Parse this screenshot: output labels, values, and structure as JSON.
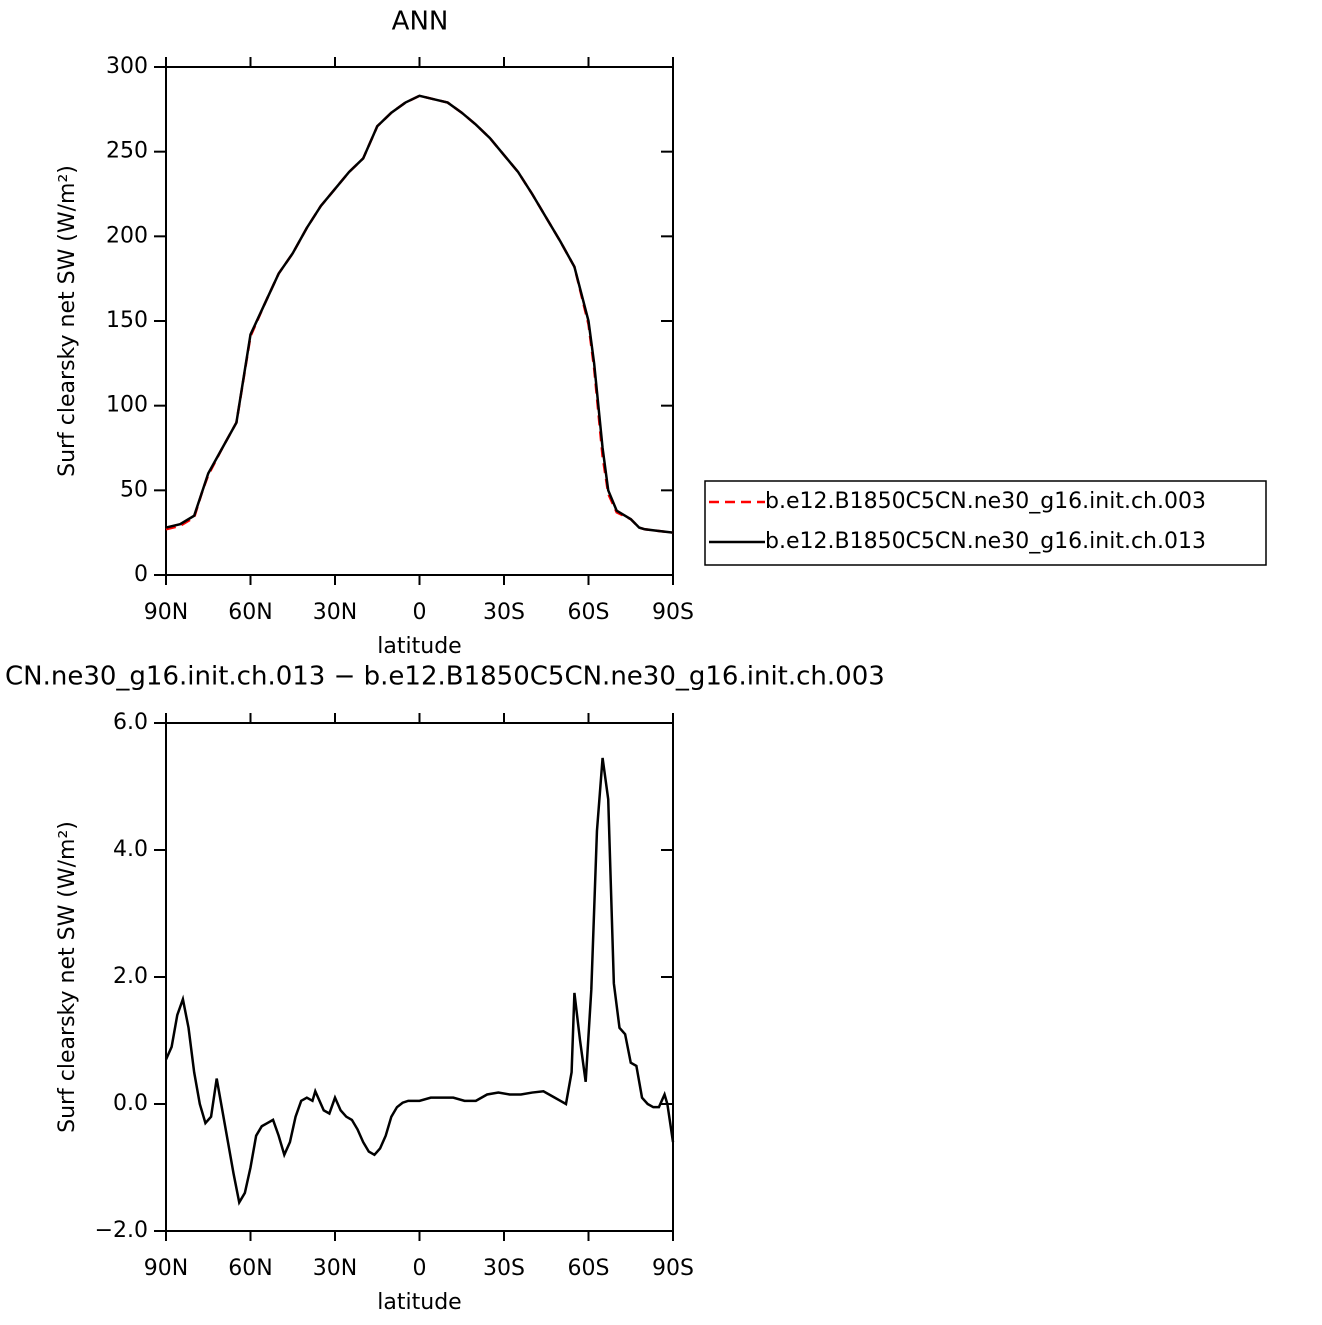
{
  "chart_data": [
    {
      "type": "line",
      "title": "ANN",
      "xlabel": "latitude",
      "ylabel": "Surf clearsky net SW (W/m²)",
      "x": [
        90,
        85,
        80,
        77,
        75,
        70,
        65,
        60,
        55,
        50,
        45,
        40,
        35,
        30,
        25,
        20,
        15,
        10,
        5,
        0,
        -5,
        -10,
        -15,
        -20,
        -25,
        -30,
        -35,
        -40,
        -45,
        -50,
        -55,
        -60,
        -62,
        -65,
        -67,
        -70,
        -75,
        -78,
        -80,
        -85,
        -90
      ],
      "series": [
        {
          "name": "b.e12.B1850C5CN.ne30_g16.init.ch.003",
          "color": "#ff0000",
          "dash": true,
          "values": [
            27,
            29,
            34,
            50,
            59,
            75,
            90,
            141,
            160,
            178,
            190,
            205,
            218,
            228,
            238,
            246,
            265,
            273,
            279,
            283,
            281,
            279,
            273,
            266,
            258,
            248,
            238,
            225,
            211,
            197,
            182,
            148,
            122,
            70,
            48,
            37,
            33,
            28,
            27,
            26,
            25
          ]
        },
        {
          "name": "b.e12.B1850C5CN.ne30_g16.init.ch.013",
          "color": "#000000",
          "dash": false,
          "values": [
            28,
            30,
            35,
            50,
            60,
            75,
            90,
            142,
            160,
            178,
            190,
            205,
            218,
            228,
            238,
            246,
            265,
            273,
            279,
            283,
            281,
            279,
            273,
            266,
            258,
            248,
            238,
            225,
            211,
            197,
            182,
            150,
            125,
            75,
            50,
            38,
            33,
            28,
            27,
            26,
            25
          ]
        }
      ],
      "xlim": [
        90,
        -90
      ],
      "xticks": [
        {
          "value": 90,
          "label": "90N"
        },
        {
          "value": 60,
          "label": "60N"
        },
        {
          "value": 30,
          "label": "30N"
        },
        0,
        {
          "value": -30,
          "label": "30S"
        },
        {
          "value": -60,
          "label": "60S"
        },
        {
          "value": -90,
          "label": "90S"
        }
      ],
      "ylim": [
        0,
        300
      ],
      "yticks": [
        0,
        50,
        100,
        150,
        200,
        250,
        300
      ],
      "legend": "right"
    },
    {
      "type": "line",
      "title": "CN.ne30_g16.init.ch.013 − b.e12.B1850C5CN.ne30_g16.init.ch.003",
      "xlabel": "latitude",
      "ylabel": "Surf clearsky net SW (W/m²)",
      "x": [
        90,
        88,
        86,
        84,
        82,
        80,
        78,
        76,
        74,
        72,
        70,
        68,
        66,
        64,
        62,
        60,
        58,
        56,
        54,
        52,
        50,
        48,
        46,
        44,
        42,
        40,
        38,
        37,
        36,
        34,
        32,
        30,
        28,
        26,
        24,
        22,
        20,
        18,
        16,
        14,
        12,
        10,
        8,
        6,
        4,
        0,
        -4,
        -8,
        -12,
        -16,
        -20,
        -24,
        -28,
        -32,
        -36,
        -40,
        -44,
        -48,
        -50,
        -52,
        -54,
        -55,
        -57,
        -59,
        -61,
        -63,
        -65,
        -67,
        -69,
        -71,
        -73,
        -75,
        -77,
        -79,
        -81,
        -83,
        -85,
        -87,
        -88,
        -90
      ],
      "series": [
        {
          "color": "#000000",
          "values": [
            0.7,
            0.9,
            1.4,
            1.65,
            1.2,
            0.5,
            0.0,
            -0.3,
            -0.2,
            0.4,
            -0.1,
            -0.6,
            -1.1,
            -1.55,
            -1.4,
            -1.0,
            -0.5,
            -0.35,
            -0.3,
            -0.25,
            -0.5,
            -0.8,
            -0.6,
            -0.2,
            0.05,
            0.1,
            0.05,
            0.2,
            0.1,
            -0.1,
            -0.15,
            0.1,
            -0.1,
            -0.2,
            -0.25,
            -0.4,
            -0.6,
            -0.75,
            -0.8,
            -0.7,
            -0.5,
            -0.2,
            -0.05,
            0.02,
            0.05,
            0.05,
            0.1,
            0.1,
            0.1,
            0.05,
            0.05,
            0.15,
            0.18,
            0.15,
            0.15,
            0.18,
            0.2,
            0.1,
            0.05,
            0.0,
            0.5,
            1.75,
            1.0,
            0.35,
            1.8,
            4.3,
            5.45,
            4.8,
            1.9,
            1.2,
            1.1,
            0.65,
            0.6,
            0.1,
            0.0,
            -0.05,
            -0.05,
            0.15,
            0.0,
            -0.6
          ]
        }
      ],
      "xlim": [
        90,
        -90
      ],
      "xticks": [
        {
          "value": 90,
          "label": "90N"
        },
        {
          "value": 60,
          "label": "60N"
        },
        {
          "value": 30,
          "label": "30N"
        },
        0,
        {
          "value": -30,
          "label": "30S"
        },
        {
          "value": -60,
          "label": "60S"
        },
        {
          "value": -90,
          "label": "90S"
        }
      ],
      "ylim": [
        -2,
        6
      ],
      "yticks": [
        {
          "value": -2,
          "label": "−2.0"
        },
        {
          "value": 0,
          "label": "0.0"
        },
        {
          "value": 2,
          "label": "2.0"
        },
        {
          "value": 4,
          "label": "4.0"
        },
        {
          "value": 6,
          "label": "6.0"
        }
      ]
    }
  ]
}
